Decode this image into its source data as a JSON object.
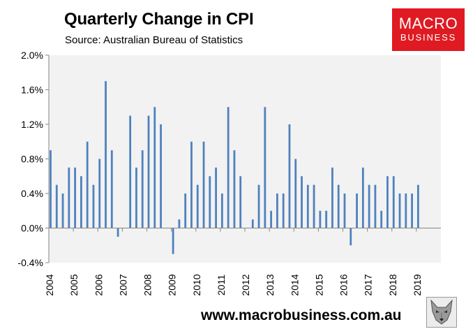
{
  "header": {
    "title": "Quarterly Change in CPI",
    "subtitle": "Source: Australian Bureau of Statistics"
  },
  "logo": {
    "line1": "MACRO",
    "line2": "BUSINESS",
    "color": "#e01a22"
  },
  "footer": {
    "url": "www.macrobusiness.com.au",
    "mascot_icon": "wolf-icon"
  },
  "colors": {
    "bar": "#4f81bd",
    "plot_bg": "#f2f2f2",
    "axis": "#868686"
  },
  "chart_data": {
    "type": "bar",
    "title": "Quarterly Change in CPI",
    "xlabel": "",
    "ylabel": "",
    "ylim": [
      -0.4,
      2.0
    ],
    "yticks": [
      -0.4,
      0.0,
      0.4,
      0.8,
      1.2,
      1.6,
      2.0
    ],
    "ytick_labels": [
      "-0.4%",
      "0.0%",
      "0.4%",
      "0.8%",
      "1.2%",
      "1.6%",
      "2.0%"
    ],
    "year_labels": [
      "2004",
      "2005",
      "2006",
      "2007",
      "2008",
      "2009",
      "2010",
      "2011",
      "2012",
      "2013",
      "2014",
      "2015",
      "2016",
      "2017",
      "2018",
      "2019"
    ],
    "quarters_per_year": 4,
    "first_year": 2004,
    "values": [
      0.9,
      0.5,
      0.4,
      0.7,
      0.7,
      0.6,
      1.0,
      0.5,
      0.8,
      1.7,
      0.9,
      -0.1,
      0.0,
      1.3,
      0.7,
      0.9,
      1.3,
      1.4,
      1.2,
      0.0,
      -0.3,
      0.1,
      0.4,
      1.0,
      0.5,
      1.0,
      0.6,
      0.7,
      0.4,
      1.4,
      0.9,
      0.6,
      0.0,
      0.1,
      0.5,
      1.4,
      0.2,
      0.4,
      0.4,
      1.2,
      0.8,
      0.6,
      0.5,
      0.5,
      0.2,
      0.2,
      0.7,
      0.5,
      0.4,
      -0.2,
      0.4,
      0.7,
      0.5,
      0.5,
      0.2,
      0.6,
      0.6,
      0.4,
      0.4,
      0.4,
      0.5
    ]
  }
}
